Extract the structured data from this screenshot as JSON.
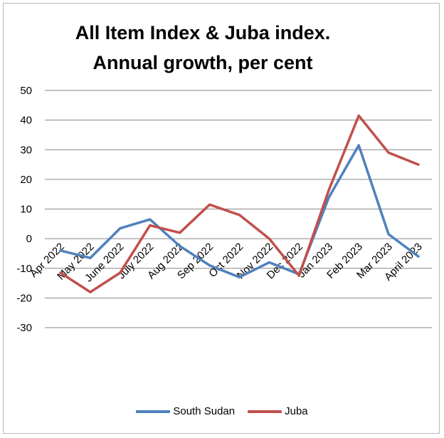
{
  "chart_data": {
    "type": "line",
    "title_line1": "All Item Index & Juba index.",
    "title_line2": "Annual growth, per cent",
    "categories": [
      "Apr 2022",
      "May 2022",
      "June 2022",
      "July 2022",
      "Aug 2022",
      "Sep 2022",
      "Oct 2022",
      "Nov 2022",
      "Dec 2022",
      "Jan 2023",
      "Feb 2023",
      "Mar 2023",
      "April 2023"
    ],
    "ylim": [
      -30,
      50
    ],
    "yticks": [
      "50",
      "40",
      "30",
      "20",
      "10",
      "0",
      "-10",
      "-20",
      "-30"
    ],
    "grid": true,
    "legend_position": "bottom",
    "series": [
      {
        "name": "South Sudan",
        "color": "#4f81bd",
        "values": [
          -4,
          -6.5,
          3.5,
          6.5,
          -2.5,
          -9,
          -13,
          -8,
          -12,
          14,
          31.5,
          1.5,
          -6
        ]
      },
      {
        "name": "Juba",
        "color": "#c0504d",
        "values": [
          -11.5,
          -18,
          -11.5,
          4.5,
          2,
          11.5,
          8,
          0,
          -12.5,
          16.5,
          41.5,
          29,
          25
        ]
      }
    ]
  }
}
